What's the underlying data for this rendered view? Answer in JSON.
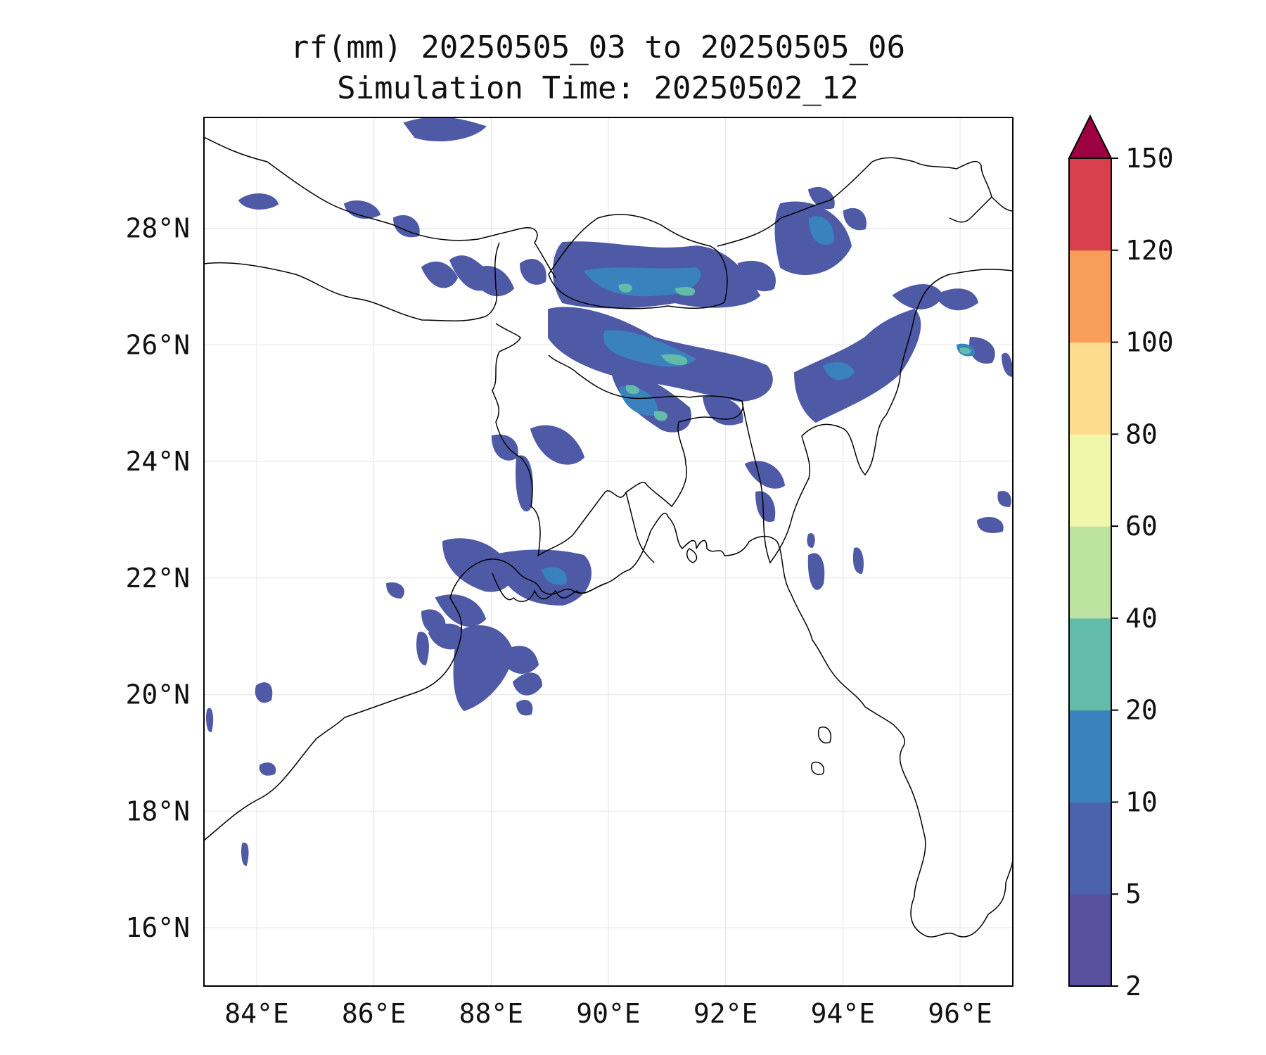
{
  "title": {
    "line1": "rf(mm) 20250505_03 to 20250505_06",
    "line2": "Simulation Time: 20250502_12"
  },
  "map": {
    "lon_range": [
      83.1,
      96.9
    ],
    "lat_range": [
      15.0,
      29.9
    ],
    "lon_ticks": [
      "84°E",
      "86°E",
      "88°E",
      "90°E",
      "92°E",
      "94°E",
      "96°E"
    ],
    "lat_ticks": [
      "16°N",
      "18°N",
      "20°N",
      "22°N",
      "24°N",
      "26°N",
      "28°N"
    ]
  },
  "colorbar": {
    "levels": [
      "2",
      "5",
      "10",
      "20",
      "40",
      "60",
      "80",
      "100",
      "120",
      "150"
    ],
    "colors": [
      "#5b4fa0",
      "#4a63ab",
      "#3a82bd",
      "#62bca9",
      "#bce3a0",
      "#f1f7aa",
      "#fddd8d",
      "#f99e5a",
      "#d9404d"
    ],
    "extend_color": "#9d0142",
    "extend": "max"
  }
}
